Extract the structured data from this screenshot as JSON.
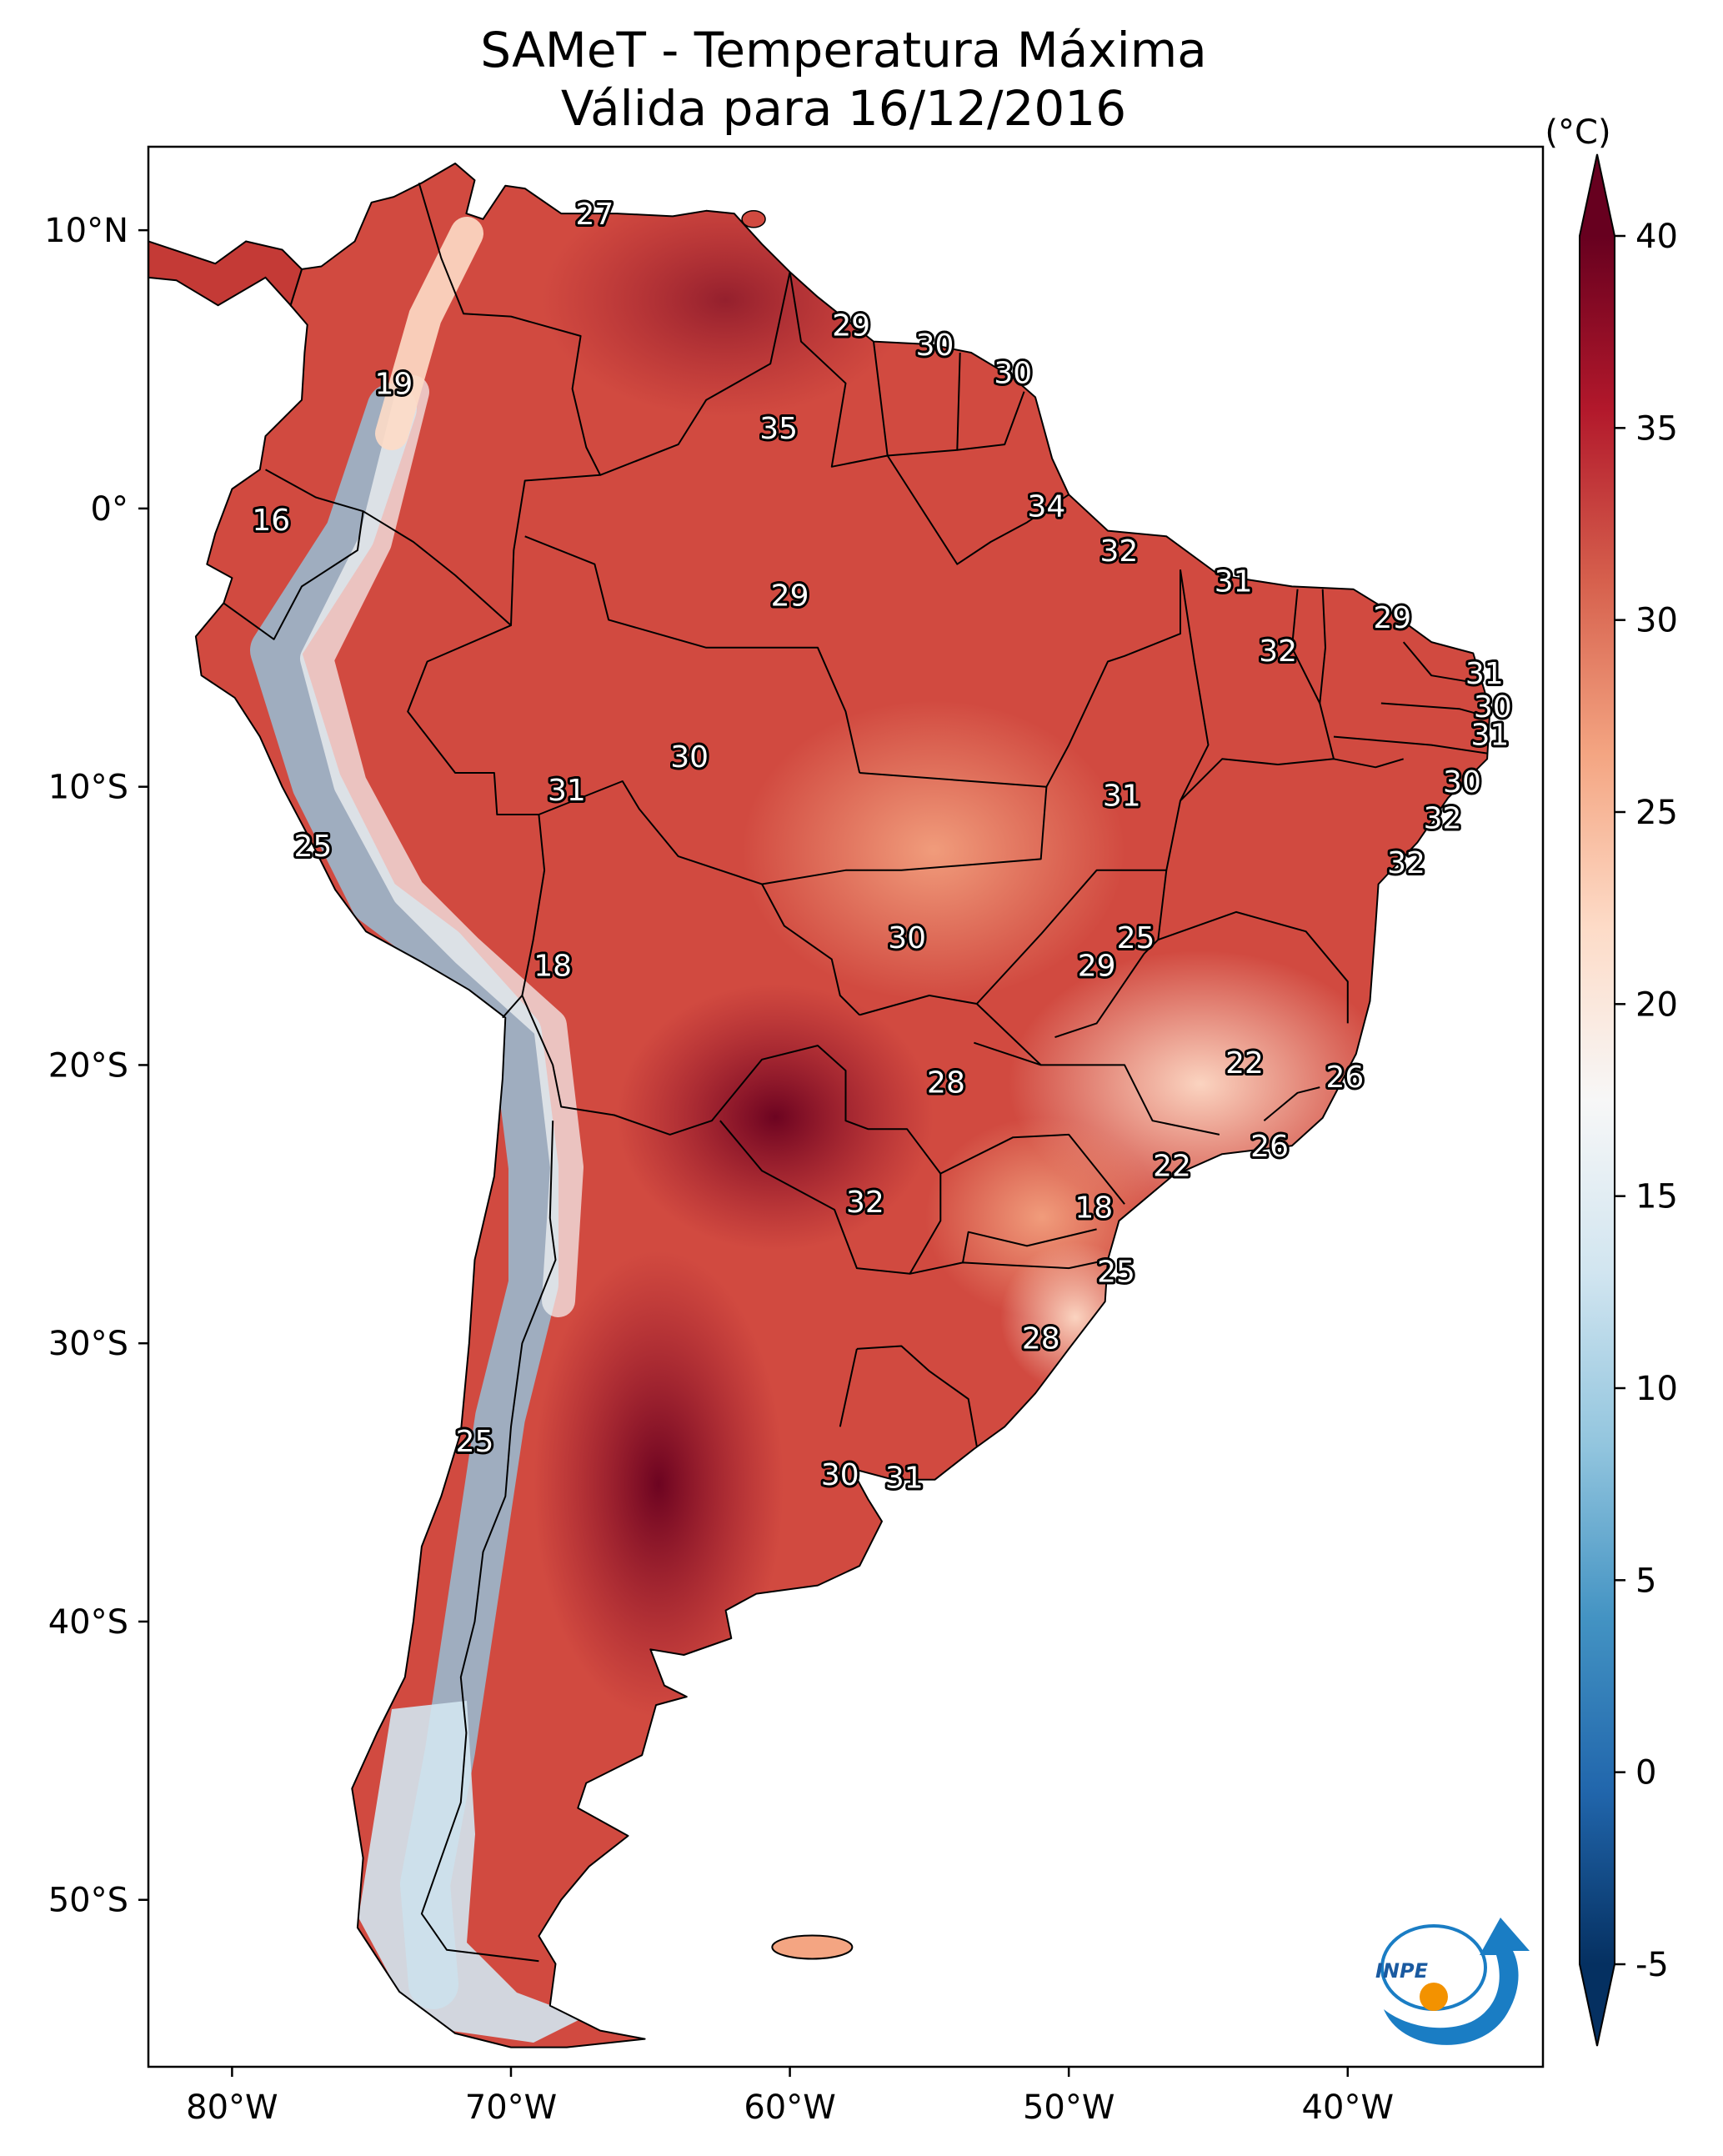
{
  "title": {
    "line1": "SAMeT - Temperatura Máxima",
    "line2": "Válida para 16/12/2016"
  },
  "colorbar": {
    "unit": "(°C)",
    "ticks": [
      "40",
      "35",
      "30",
      "25",
      "20",
      "15",
      "10",
      "5",
      "0",
      "-5"
    ],
    "tick_values": [
      40,
      35,
      30,
      25,
      20,
      15,
      10,
      5,
      0,
      -5
    ],
    "range": [
      -5,
      40
    ],
    "colormap": "RdBu_r",
    "colors": [
      "#053061",
      "#2166ac",
      "#4393c3",
      "#92c5de",
      "#d1e5f0",
      "#f7f7f7",
      "#fddbc7",
      "#f4a582",
      "#d6604d",
      "#b2182b",
      "#67001f"
    ]
  },
  "axes": {
    "lon_ticks": [
      "80°W",
      "70°W",
      "60°W",
      "50°W",
      "40°W"
    ],
    "lon_values": [
      -80,
      -70,
      -60,
      -50,
      -40
    ],
    "lat_ticks": [
      "10°N",
      "0°",
      "10°S",
      "20°S",
      "30°S",
      "40°S",
      "50°S"
    ],
    "lat_values": [
      10,
      0,
      -10,
      -20,
      -30,
      -40,
      -50
    ],
    "lon_range": [
      -83,
      -33
    ],
    "lat_range": [
      -56,
      13
    ]
  },
  "contour_labels": [
    {
      "text": "27",
      "lon": -67,
      "lat": 10.6
    },
    {
      "text": "29",
      "lon": -57.8,
      "lat": 6.6
    },
    {
      "text": "30",
      "lon": -54.8,
      "lat": 5.9
    },
    {
      "text": "30",
      "lon": -52,
      "lat": 4.9
    },
    {
      "text": "19",
      "lon": -74.2,
      "lat": 4.5
    },
    {
      "text": "35",
      "lon": -60.4,
      "lat": 2.9
    },
    {
      "text": "34",
      "lon": -50.8,
      "lat": 0.1
    },
    {
      "text": "16",
      "lon": -78.6,
      "lat": -0.4
    },
    {
      "text": "32",
      "lon": -48.2,
      "lat": -1.5
    },
    {
      "text": "31",
      "lon": -44.1,
      "lat": -2.6
    },
    {
      "text": "29",
      "lon": -60,
      "lat": -3.1
    },
    {
      "text": "29",
      "lon": -38.4,
      "lat": -3.9
    },
    {
      "text": "32",
      "lon": -42.5,
      "lat": -5.1
    },
    {
      "text": "31",
      "lon": -35.1,
      "lat": -5.9
    },
    {
      "text": "30",
      "lon": -34.8,
      "lat": -7.1
    },
    {
      "text": "31",
      "lon": -34.9,
      "lat": -8.1
    },
    {
      "text": "30",
      "lon": -63.6,
      "lat": -8.9
    },
    {
      "text": "31",
      "lon": -68,
      "lat": -10.1
    },
    {
      "text": "31",
      "lon": -48.1,
      "lat": -10.3
    },
    {
      "text": "30",
      "lon": -35.9,
      "lat": -9.8
    },
    {
      "text": "32",
      "lon": -36.6,
      "lat": -11.1
    },
    {
      "text": "25",
      "lon": -77.1,
      "lat": -12.1
    },
    {
      "text": "32",
      "lon": -37.9,
      "lat": -12.7
    },
    {
      "text": "30",
      "lon": -55.8,
      "lat": -15.4
    },
    {
      "text": "25",
      "lon": -47.6,
      "lat": -15.4
    },
    {
      "text": "29",
      "lon": -49,
      "lat": -16.4
    },
    {
      "text": "18",
      "lon": -68.5,
      "lat": -16.4
    },
    {
      "text": "22",
      "lon": -43.7,
      "lat": -19.9
    },
    {
      "text": "26",
      "lon": -40.1,
      "lat": -20.4
    },
    {
      "text": "28",
      "lon": -54.4,
      "lat": -20.6
    },
    {
      "text": "26",
      "lon": -42.8,
      "lat": -22.9
    },
    {
      "text": "22",
      "lon": -46.3,
      "lat": -23.6
    },
    {
      "text": "32",
      "lon": -57.3,
      "lat": -24.9
    },
    {
      "text": "18",
      "lon": -49.1,
      "lat": -25.1
    },
    {
      "text": "25",
      "lon": -48.3,
      "lat": -27.4
    },
    {
      "text": "28",
      "lon": -51,
      "lat": -29.8
    },
    {
      "text": "25",
      "lon": -71.3,
      "lat": -33.5
    },
    {
      "text": "30",
      "lon": -58.2,
      "lat": -34.7
    },
    {
      "text": "31",
      "lon": -55.9,
      "lat": -34.8
    }
  ]
}
